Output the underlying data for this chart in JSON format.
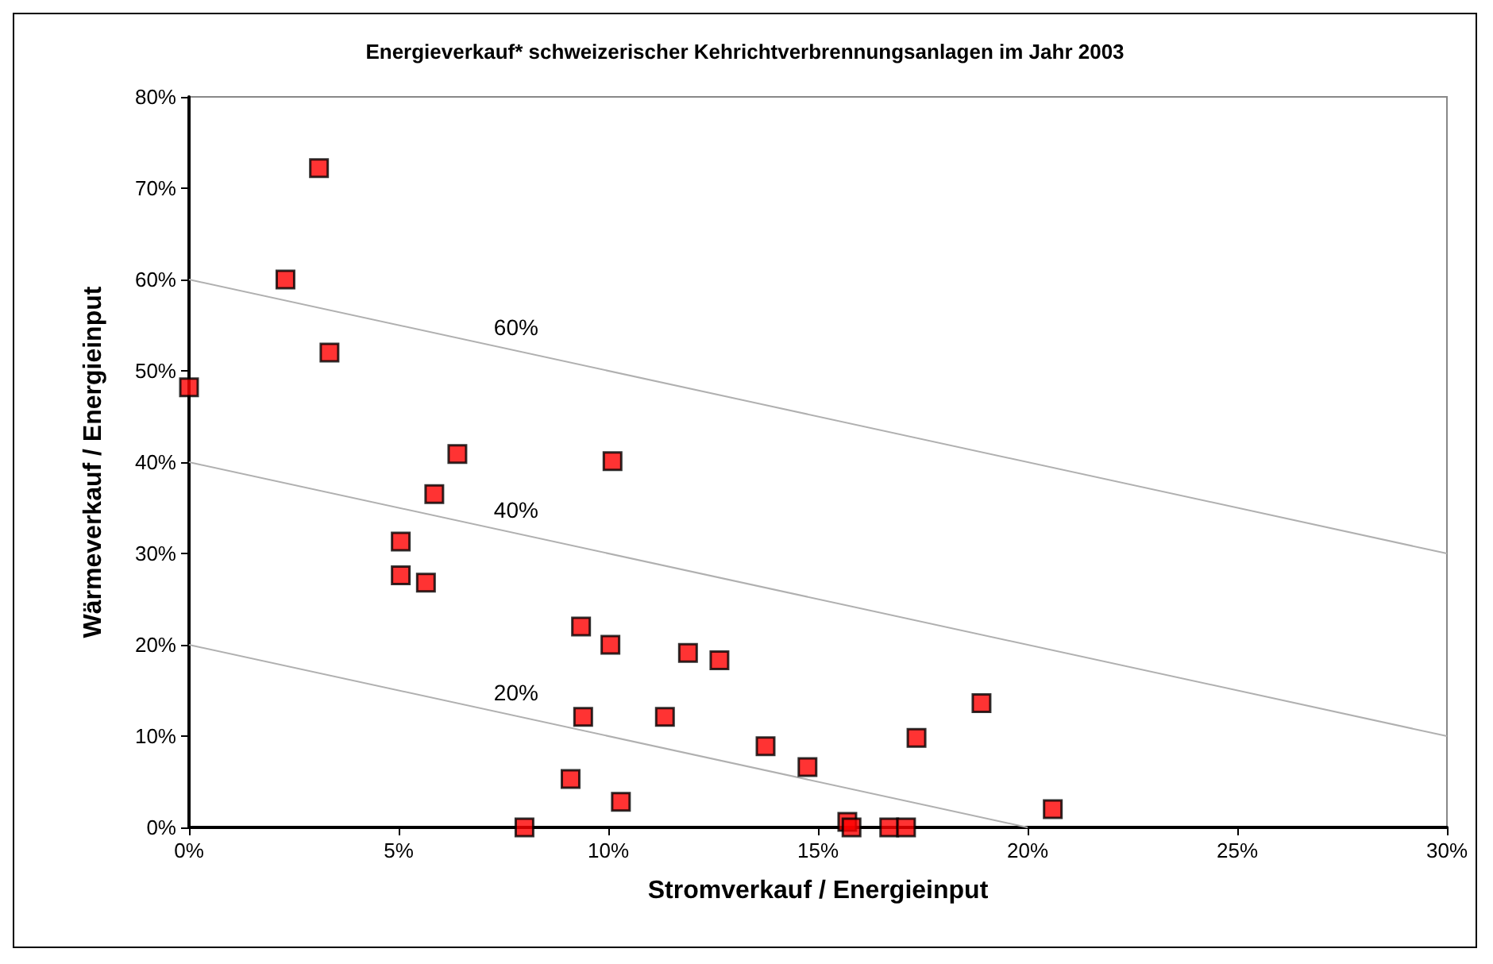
{
  "chart_data": {
    "type": "scatter",
    "title": "Energieverkauf* schweizerischer Kehrichtverbrennungsanlagen im Jahr 2003",
    "xlabel": "Stromverkauf / Energieinput",
    "ylabel": "Wärmeverkauf / Energieinput",
    "marker": "square",
    "grid": false,
    "legend": false,
    "xlim": [
      0,
      30
    ],
    "xticks": [
      {
        "value": 0,
        "label": "0%"
      },
      {
        "value": 5,
        "label": "5%"
      },
      {
        "value": 10,
        "label": "10%"
      },
      {
        "value": 15,
        "label": "15%"
      },
      {
        "value": 20,
        "label": "20%"
      },
      {
        "value": 25,
        "label": "25%"
      },
      {
        "value": 30,
        "label": "30%"
      }
    ],
    "ylim": [
      0,
      80
    ],
    "yticks": [
      {
        "value": 0,
        "label": "0%"
      },
      {
        "value": 10,
        "label": "10%"
      },
      {
        "value": 20,
        "label": "20%"
      },
      {
        "value": 30,
        "label": "30%"
      },
      {
        "value": 40,
        "label": "40%"
      },
      {
        "value": 50,
        "label": "50%"
      },
      {
        "value": 60,
        "label": "60%"
      },
      {
        "value": 70,
        "label": "70%"
      },
      {
        "value": 80,
        "label": "80%"
      }
    ],
    "series": [
      {
        "color": "#ff0000",
        "x": [
          0,
          3.1,
          2.3,
          3.35,
          6.4,
          10.1,
          5.85,
          5.05,
          5.05,
          5.65,
          9.35,
          10.05,
          9.4,
          9.1,
          10.3,
          8.0,
          11.9,
          12.65,
          11.35,
          13.75,
          14.75,
          18.9,
          17.35,
          20.6,
          15.7,
          15.8,
          16.7,
          17.1
        ],
        "values": [
          48.2,
          72.2,
          60,
          52,
          40.9,
          40.1,
          36.5,
          31.3,
          27.6,
          26.8,
          22,
          20,
          12.1,
          5.3,
          2.8,
          0,
          19.1,
          18.3,
          12.1,
          8.9,
          6.6,
          13.6,
          9.8,
          2,
          0.6,
          0,
          0,
          0
        ]
      },
      {
        "type": "line",
        "name": "60%",
        "color": "#b0b0b0",
        "marker": "none",
        "x": [
          0,
          30
        ],
        "values": [
          60,
          30
        ]
      },
      {
        "type": "line",
        "name": "40%",
        "color": "#b0b0b0",
        "marker": "none",
        "x": [
          0,
          30
        ],
        "values": [
          40,
          10
        ]
      },
      {
        "type": "line",
        "name": "20%",
        "color": "#b0b0b0",
        "marker": "none",
        "x": [
          0,
          20
        ],
        "values": [
          20,
          0
        ]
      }
    ]
  }
}
